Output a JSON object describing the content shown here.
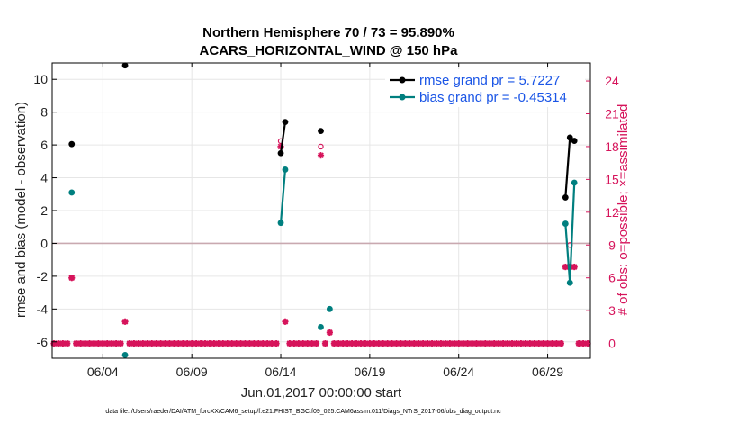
{
  "chart_data": {
    "type": "line",
    "title": "Northern Hemisphere 70 / 73 = 95.890%",
    "subtitle": "ACARS_HORIZONTAL_WIND @ 150 hPa",
    "xlabel": "Jun.01,2017 00:00:00 start",
    "ylabel": "rmse and bias (model - observation)",
    "y2label": "# of obs: o=possible; ×=assimilated",
    "footnote": "data file: /Users/raeder/DAI/ATM_forcXX/CAM6_setup/f.e21.FHIST_BGC.f09_025.CAM6assim.011/Diags_NTrS_2017-06/obs_diag_output.nc",
    "xlim": [
      1.15,
      31.4
    ],
    "ylim": [
      -7.0,
      11.0
    ],
    "y2lim": [
      -1.35,
      25.65
    ],
    "xticks": [
      {
        "v": 4,
        "label": "06/04"
      },
      {
        "v": 9,
        "label": "06/09"
      },
      {
        "v": 14,
        "label": "06/14"
      },
      {
        "v": 19,
        "label": "06/19"
      },
      {
        "v": 24,
        "label": "06/24"
      },
      {
        "v": 29,
        "label": "06/29"
      }
    ],
    "yticks": [
      -6,
      -4,
      -2,
      0,
      2,
      4,
      6,
      8,
      10
    ],
    "y2ticks": [
      0,
      3,
      6,
      9,
      12,
      15,
      18,
      21,
      24
    ],
    "grid": true,
    "legend_position": "top-right",
    "colors": {
      "rmse": "#000000",
      "bias": "#007f7f",
      "obs": "#d6145b",
      "zero": "#c9a9b0",
      "grid": "#e6e6e6"
    },
    "series": [
      {
        "name": "rmse grand pr = 5.7227",
        "key": "rmse",
        "points": [
          [
            2.25,
            6.05
          ],
          [
            5.25,
            10.85
          ],
          [
            14.0,
            5.5
          ],
          [
            14.25,
            7.4
          ],
          [
            16.25,
            6.85
          ],
          [
            30.0,
            2.8
          ],
          [
            30.25,
            6.45
          ],
          [
            30.5,
            6.25
          ]
        ]
      },
      {
        "name": "bias grand pr = -0.45314",
        "key": "bias",
        "points": [
          [
            2.25,
            3.1
          ],
          [
            5.25,
            -6.8
          ],
          [
            14.0,
            1.25
          ],
          [
            14.25,
            4.5
          ],
          [
            16.25,
            -5.1
          ],
          [
            16.75,
            -4.0
          ],
          [
            30.0,
            1.2
          ],
          [
            30.25,
            -2.4
          ],
          [
            30.5,
            3.7
          ]
        ]
      }
    ],
    "obs_possible": [
      [
        2.25,
        6
      ],
      [
        5.25,
        2
      ],
      [
        14.0,
        18.5
      ],
      [
        14.25,
        2
      ],
      [
        16.25,
        18.0
      ],
      [
        16.75,
        1
      ],
      [
        30.0,
        7
      ],
      [
        30.25,
        9
      ],
      [
        30.5,
        7
      ]
    ],
    "obs_assimilated": [
      [
        2.25,
        6
      ],
      [
        5.25,
        2
      ],
      [
        14.0,
        18.0
      ],
      [
        14.25,
        2
      ],
      [
        16.25,
        17.2
      ],
      [
        16.75,
        1
      ],
      [
        30.0,
        7
      ],
      [
        30.25,
        7
      ],
      [
        30.5,
        7
      ]
    ],
    "obs_zero_start": 1.25,
    "obs_zero_step": 0.25,
    "obs_zero_end": 31.25
  }
}
